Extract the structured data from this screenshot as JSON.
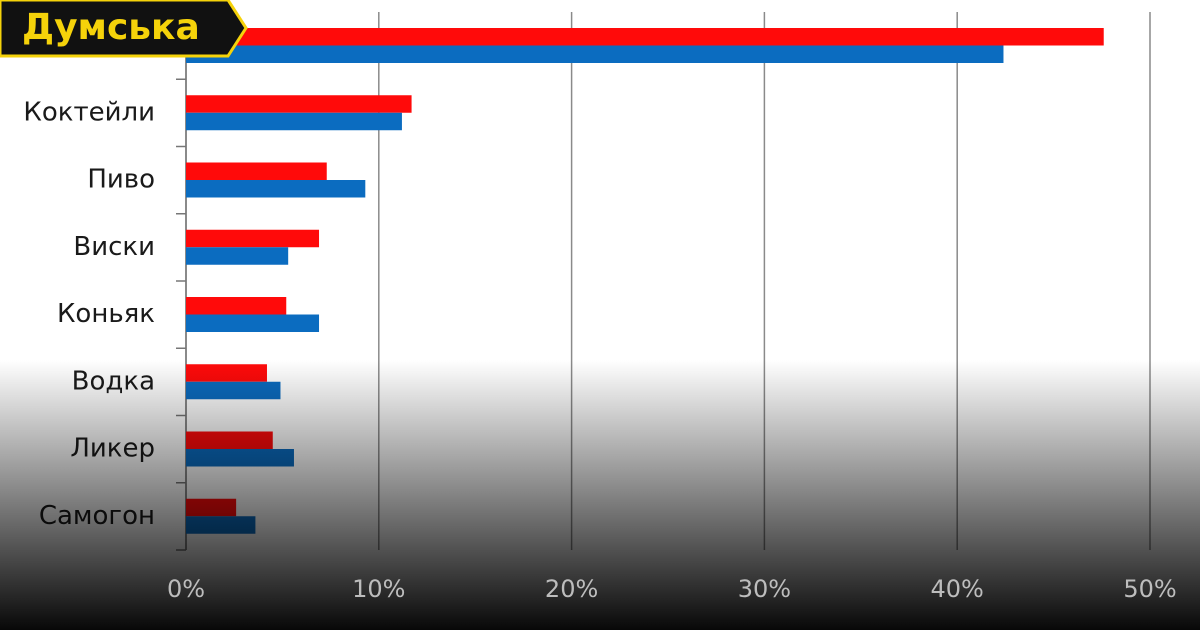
{
  "logo": "Думська",
  "chart_data": {
    "type": "hbar",
    "categories": [
      null,
      "Коктейли",
      "Пиво",
      "Виски",
      "Коньяк",
      "Водка",
      "Ликер",
      "Самогон"
    ],
    "series": [
      {
        "color": "#ff0a0a",
        "values": [
          47.6,
          11.7,
          7.3,
          6.9,
          5.2,
          4.2,
          4.5,
          2.6
        ]
      },
      {
        "color": "#0b6cc0",
        "values": [
          42.4,
          11.2,
          9.3,
          5.3,
          6.9,
          4.9,
          5.6,
          3.6
        ]
      }
    ],
    "xlim": [
      0,
      50
    ],
    "xticks": [
      {
        "value": 0,
        "label": "0%"
      },
      {
        "value": 10,
        "label": "10%"
      },
      {
        "value": 20,
        "label": "20%"
      },
      {
        "value": 30,
        "label": "30%"
      },
      {
        "value": 40,
        "label": "40%"
      },
      {
        "value": 50,
        "label": "50%"
      }
    ],
    "grid": true
  }
}
